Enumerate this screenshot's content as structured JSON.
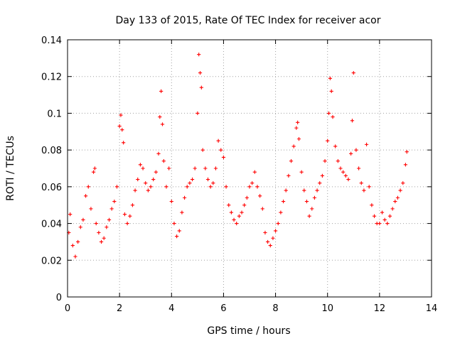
{
  "chart_data": {
    "type": "scatter",
    "title": "Day 133 of 2015, Rate Of TEC Index for receiver acor",
    "xlabel": "GPS time / hours",
    "ylabel": "ROTI / TECUs",
    "xlim": [
      0,
      14
    ],
    "ylim": [
      0,
      0.14
    ],
    "x_ticks": [
      0,
      2,
      4,
      6,
      8,
      10,
      12,
      14
    ],
    "x_tick_labels": [
      "0",
      "2",
      "4",
      "6",
      "8",
      "10",
      "12",
      "14"
    ],
    "y_ticks": [
      0,
      0.02,
      0.04,
      0.06,
      0.08,
      0.1,
      0.12,
      0.14
    ],
    "y_tick_labels": [
      "0",
      "0.02",
      "0.04",
      "0.06",
      "0.08",
      "0.1",
      "0.12",
      "0.14"
    ],
    "grid": true,
    "marker": "plus",
    "color": "#ff0000",
    "series": [
      {
        "name": "ROTI",
        "x": [
          0.05,
          0.1,
          0.2,
          0.3,
          0.4,
          0.5,
          0.6,
          0.7,
          0.8,
          0.9,
          1.0,
          1.05,
          1.1,
          1.2,
          1.3,
          1.4,
          1.5,
          1.6,
          1.7,
          1.8,
          1.9,
          2.0,
          2.05,
          2.1,
          2.15,
          2.2,
          2.3,
          2.4,
          2.5,
          2.6,
          2.7,
          2.8,
          2.9,
          3.0,
          3.1,
          3.2,
          3.3,
          3.4,
          3.5,
          3.55,
          3.6,
          3.65,
          3.7,
          3.8,
          3.9,
          4.0,
          4.1,
          4.2,
          4.3,
          4.4,
          4.5,
          4.6,
          4.7,
          4.8,
          4.9,
          5.0,
          5.05,
          5.1,
          5.15,
          5.2,
          5.3,
          5.4,
          5.5,
          5.6,
          5.7,
          5.8,
          5.9,
          6.0,
          6.1,
          6.2,
          6.3,
          6.4,
          6.5,
          6.6,
          6.7,
          6.8,
          6.9,
          7.0,
          7.1,
          7.2,
          7.3,
          7.4,
          7.5,
          7.6,
          7.7,
          7.8,
          7.9,
          8.0,
          8.1,
          8.2,
          8.3,
          8.4,
          8.5,
          8.6,
          8.7,
          8.8,
          8.85,
          8.9,
          9.0,
          9.1,
          9.2,
          9.3,
          9.4,
          9.5,
          9.6,
          9.7,
          9.8,
          9.9,
          10.0,
          10.05,
          10.1,
          10.15,
          10.2,
          10.3,
          10.4,
          10.5,
          10.6,
          10.7,
          10.8,
          10.9,
          10.95,
          11.0,
          11.1,
          11.2,
          11.3,
          11.4,
          11.5,
          11.6,
          11.7,
          11.8,
          11.9,
          12.0,
          12.1,
          12.2,
          12.3,
          12.4,
          12.5,
          12.6,
          12.7,
          12.8,
          12.9,
          13.0,
          13.05
        ],
        "y": [
          0.035,
          0.045,
          0.028,
          0.022,
          0.03,
          0.038,
          0.042,
          0.055,
          0.06,
          0.048,
          0.068,
          0.07,
          0.04,
          0.035,
          0.03,
          0.032,
          0.038,
          0.042,
          0.048,
          0.052,
          0.06,
          0.093,
          0.099,
          0.091,
          0.084,
          0.045,
          0.04,
          0.044,
          0.05,
          0.058,
          0.064,
          0.072,
          0.07,
          0.062,
          0.058,
          0.06,
          0.064,
          0.068,
          0.078,
          0.098,
          0.112,
          0.094,
          0.074,
          0.06,
          0.07,
          0.052,
          0.04,
          0.033,
          0.036,
          0.046,
          0.054,
          0.06,
          0.062,
          0.064,
          0.07,
          0.1,
          0.132,
          0.122,
          0.114,
          0.08,
          0.07,
          0.064,
          0.06,
          0.062,
          0.07,
          0.085,
          0.08,
          0.076,
          0.06,
          0.05,
          0.046,
          0.042,
          0.04,
          0.044,
          0.046,
          0.05,
          0.054,
          0.06,
          0.062,
          0.068,
          0.06,
          0.055,
          0.048,
          0.035,
          0.03,
          0.028,
          0.032,
          0.036,
          0.04,
          0.046,
          0.052,
          0.058,
          0.066,
          0.074,
          0.082,
          0.092,
          0.095,
          0.086,
          0.068,
          0.058,
          0.052,
          0.044,
          0.048,
          0.054,
          0.058,
          0.062,
          0.066,
          0.074,
          0.085,
          0.1,
          0.119,
          0.112,
          0.098,
          0.082,
          0.074,
          0.07,
          0.068,
          0.066,
          0.064,
          0.078,
          0.096,
          0.122,
          0.08,
          0.07,
          0.062,
          0.058,
          0.083,
          0.06,
          0.05,
          0.044,
          0.04,
          0.04,
          0.046,
          0.042,
          0.04,
          0.044,
          0.048,
          0.052,
          0.054,
          0.058,
          0.062,
          0.072,
          0.079
        ]
      }
    ]
  }
}
